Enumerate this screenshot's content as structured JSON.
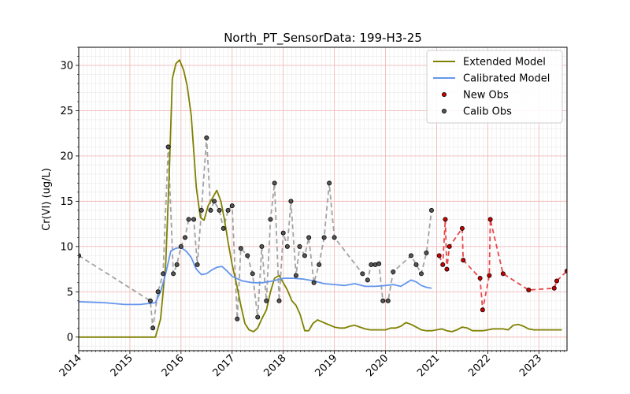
{
  "chart_data": {
    "type": "line",
    "title": "North_PT_SensorData: 199-H3-25",
    "xlabel": "",
    "ylabel": "Cr(VI) (ug/L)",
    "xlim": [
      2014.0,
      2023.55
    ],
    "ylim": [
      -1.5,
      32.0
    ],
    "x_ticks": [
      2014,
      2015,
      2016,
      2017,
      2018,
      2019,
      2020,
      2021,
      2022,
      2023
    ],
    "x_tick_labels": [
      "2014",
      "2015",
      "2016",
      "2017",
      "2018",
      "2019",
      "2020",
      "2021",
      "2022",
      "2023"
    ],
    "y_ticks": [
      0,
      5,
      10,
      15,
      20,
      25,
      30
    ],
    "y_tick_labels": [
      "0",
      "5",
      "10",
      "15",
      "20",
      "25",
      "30"
    ],
    "grid": true,
    "legend_position": "upper right",
    "colors": {
      "extended_model": "#808000",
      "calibrated_model": "#6495ED",
      "new_obs": "#cc0000",
      "new_obs_line": "#e8474a",
      "calib_obs": "#555555",
      "calib_obs_line": "#a3a3a3",
      "major_grid": "#f2b8b8",
      "minor_grid": "#ececec"
    },
    "series": [
      {
        "name": "Extended Model",
        "kind": "line",
        "x": [
          2014.0,
          2015.0,
          2015.4,
          2015.5,
          2015.6,
          2015.7,
          2015.77,
          2015.83,
          2015.9,
          2015.97,
          2016.05,
          2016.12,
          2016.2,
          2016.3,
          2016.38,
          2016.45,
          2016.53,
          2016.62,
          2016.7,
          2016.78,
          2016.85,
          2016.92,
          2017.0,
          2017.08,
          2017.17,
          2017.25,
          2017.33,
          2017.42,
          2017.5,
          2017.58,
          2017.67,
          2017.75,
          2017.83,
          2017.92,
          2018.0,
          2018.08,
          2018.17,
          2018.25,
          2018.33,
          2018.42,
          2018.5,
          2018.58,
          2018.67,
          2018.75,
          2018.83,
          2018.92,
          2019.0,
          2019.1,
          2019.2,
          2019.3,
          2019.4,
          2019.5,
          2019.6,
          2019.7,
          2019.8,
          2019.9,
          2020.0,
          2020.1,
          2020.2,
          2020.3,
          2020.4,
          2020.5,
          2020.6,
          2020.7,
          2020.8,
          2020.9,
          2021.0,
          2021.1,
          2021.2,
          2021.3,
          2021.4,
          2021.5,
          2021.6,
          2021.7,
          2021.8,
          2021.9,
          2022.0,
          2022.1,
          2022.2,
          2022.3,
          2022.4,
          2022.5,
          2022.6,
          2022.7,
          2022.8,
          2022.9,
          2023.0,
          2023.2,
          2023.45
        ],
        "y": [
          0.0,
          0.0,
          0.0,
          0.0,
          2.0,
          8.0,
          18.0,
          28.5,
          30.2,
          30.6,
          29.5,
          27.8,
          24.5,
          16.5,
          13.2,
          12.9,
          14.5,
          15.4,
          16.2,
          15.0,
          13.0,
          10.5,
          8.0,
          6.0,
          3.5,
          1.5,
          0.8,
          0.6,
          1.0,
          2.0,
          3.0,
          5.0,
          6.5,
          6.8,
          6.0,
          5.2,
          4.0,
          3.5,
          2.5,
          0.7,
          0.7,
          1.5,
          1.9,
          1.7,
          1.5,
          1.3,
          1.1,
          1.0,
          1.0,
          1.2,
          1.3,
          1.1,
          0.9,
          0.8,
          0.8,
          0.8,
          0.8,
          1.0,
          1.0,
          1.2,
          1.6,
          1.4,
          1.1,
          0.8,
          0.7,
          0.7,
          0.8,
          0.9,
          0.7,
          0.6,
          0.8,
          1.1,
          1.0,
          0.7,
          0.7,
          0.7,
          0.8,
          0.9,
          0.9,
          0.9,
          0.8,
          1.3,
          1.4,
          1.2,
          0.9,
          0.8,
          0.8,
          0.8,
          0.8
        ]
      },
      {
        "name": "Calibrated Model",
        "kind": "line",
        "x": [
          2014.0,
          2014.5,
          2014.9,
          2015.2,
          2015.5,
          2015.6,
          2015.7,
          2015.8,
          2015.9,
          2016.0,
          2016.1,
          2016.2,
          2016.3,
          2016.4,
          2016.5,
          2016.6,
          2016.7,
          2016.8,
          2016.9,
          2017.0,
          2017.2,
          2017.4,
          2017.6,
          2017.8,
          2018.0,
          2018.2,
          2018.4,
          2018.6,
          2018.8,
          2019.0,
          2019.2,
          2019.4,
          2019.6,
          2019.8,
          2020.0,
          2020.15,
          2020.3,
          2020.5,
          2020.6,
          2020.7,
          2020.8,
          2020.9
        ],
        "y": [
          3.9,
          3.8,
          3.6,
          3.6,
          3.8,
          5.0,
          7.0,
          9.5,
          9.8,
          9.9,
          9.5,
          8.8,
          7.5,
          6.9,
          7.0,
          7.4,
          7.7,
          7.8,
          7.3,
          6.7,
          6.2,
          6.0,
          6.0,
          6.2,
          6.5,
          6.5,
          6.4,
          6.2,
          5.9,
          5.8,
          5.7,
          5.9,
          5.6,
          5.6,
          5.7,
          5.8,
          5.6,
          6.3,
          6.1,
          5.7,
          5.5,
          5.4
        ]
      },
      {
        "name": "New Obs",
        "kind": "scatter+dashed",
        "x": [
          2021.05,
          2021.12,
          2021.17,
          2021.2,
          2021.25,
          2021.5,
          2021.52,
          2021.85,
          2021.9,
          2022.03,
          2022.05,
          2022.3,
          2022.8,
          2023.3,
          2023.35,
          2023.55
        ],
        "y": [
          9.0,
          8.0,
          13.0,
          7.5,
          10.0,
          12.0,
          8.5,
          6.5,
          3.0,
          6.8,
          13.0,
          7.0,
          5.2,
          5.4,
          6.2,
          7.3
        ]
      },
      {
        "name": "Calib Obs",
        "kind": "scatter+dashed",
        "x": [
          2014.0,
          2015.4,
          2015.45,
          2015.55,
          2015.65,
          2015.75,
          2015.85,
          2015.92,
          2016.0,
          2016.08,
          2016.15,
          2016.25,
          2016.32,
          2016.4,
          2016.5,
          2016.58,
          2016.65,
          2016.75,
          2016.83,
          2016.92,
          2017.0,
          2017.1,
          2017.17,
          2017.3,
          2017.4,
          2017.5,
          2017.58,
          2017.67,
          2017.75,
          2017.83,
          2017.92,
          2018.0,
          2018.08,
          2018.15,
          2018.25,
          2018.32,
          2018.42,
          2018.5,
          2018.6,
          2018.7,
          2018.8,
          2018.9,
          2019.0,
          2019.55,
          2019.65,
          2019.72,
          2019.8,
          2019.87,
          2019.95,
          2020.05,
          2020.15,
          2020.5,
          2020.6,
          2020.7,
          2020.8,
          2020.9
        ],
        "y": [
          9.0,
          4.0,
          1.0,
          5.0,
          7.0,
          21.0,
          7.0,
          8.0,
          10.0,
          11.0,
          13.0,
          13.0,
          8.0,
          14.0,
          22.0,
          14.0,
          15.0,
          14.0,
          12.0,
          14.0,
          14.5,
          2.0,
          9.8,
          9.0,
          7.0,
          2.2,
          10.0,
          4.0,
          13.0,
          17.0,
          4.0,
          11.5,
          10.0,
          15.0,
          6.8,
          10.0,
          9.0,
          11.0,
          6.0,
          8.0,
          11.0,
          17.0,
          11.0,
          7.0,
          6.3,
          8.0,
          8.0,
          8.1,
          4.0,
          4.0,
          7.2,
          9.0,
          8.0,
          7.0,
          9.3,
          14.0
        ]
      }
    ]
  }
}
